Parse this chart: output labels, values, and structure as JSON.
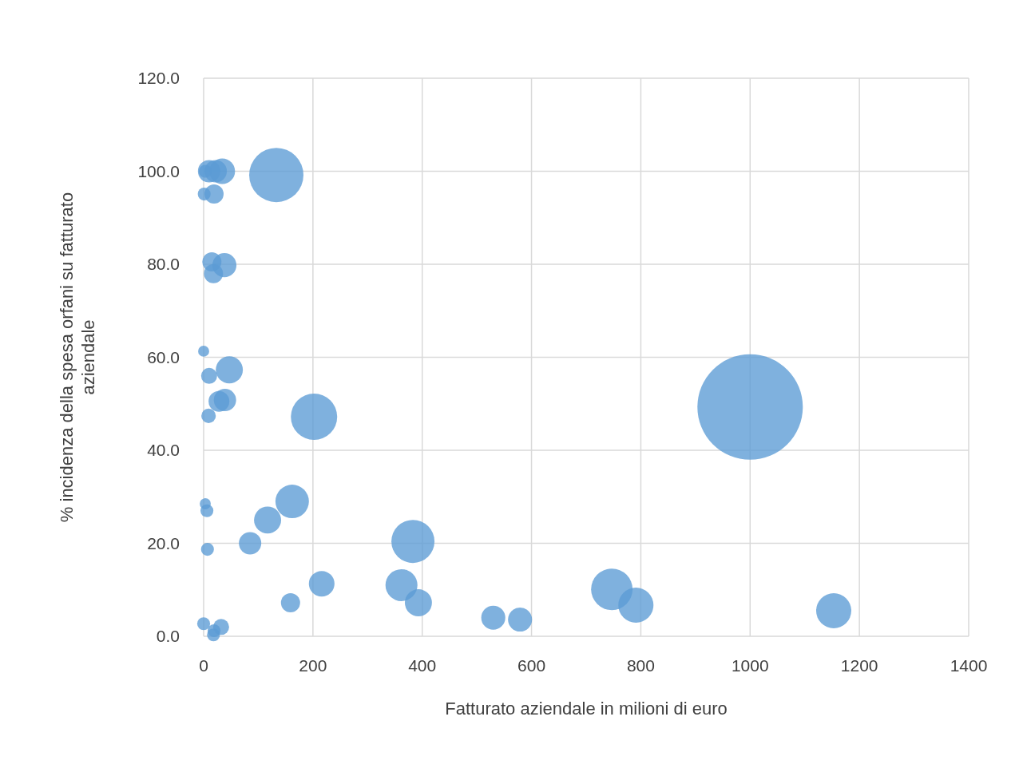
{
  "chart_data": {
    "type": "bubble",
    "xlabel": "Fatturato aziendale in milioni di euro",
    "ylabel": "% incidenza della spesa orfani su fatturato aziendale",
    "xlim": [
      0,
      1400
    ],
    "xticks": [
      0,
      200,
      400,
      600,
      800,
      1000,
      1200,
      1400
    ],
    "ylim": [
      0,
      120
    ],
    "yticks": [
      {
        "value": 0,
        "label": "0.0"
      },
      {
        "value": 20,
        "label": "20.0"
      },
      {
        "value": 40,
        "label": "40.0"
      },
      {
        "value": 60,
        "label": "60.0"
      },
      {
        "value": 80,
        "label": "80.0"
      },
      {
        "value": 100,
        "label": "100.0"
      },
      {
        "value": 120,
        "label": "120.0"
      }
    ],
    "grid": true,
    "series": [
      {
        "color": "#5b9bd5",
        "x": [
          1000,
          133,
          202,
          383,
          747,
          1153,
          791,
          162,
          362,
          117,
          216,
          393,
          530,
          579,
          85,
          159,
          47,
          39,
          28,
          10,
          9,
          0,
          38,
          15,
          18,
          34,
          10,
          22,
          19,
          1,
          3,
          3,
          6,
          7,
          0,
          18,
          32,
          19
        ],
        "values": [
          49.3,
          99.2,
          47.2,
          20.4,
          10.1,
          5.5,
          6.7,
          29,
          11,
          25,
          11.3,
          7.2,
          4,
          3.6,
          20,
          7.2,
          57.3,
          50.8,
          50.5,
          56,
          47.4,
          61.3,
          79.8,
          80.5,
          78,
          100,
          100,
          100,
          95.1,
          95.1,
          100,
          28.5,
          27,
          18.7,
          2.7,
          0.3,
          2,
          1.2
        ],
        "sizes": [
          1,
          0.265,
          0.193,
          0.167,
          0.155,
          0.111,
          0.111,
          0.101,
          0.092,
          0.066,
          0.059,
          0.066,
          0.052,
          0.052,
          0.045,
          0.033,
          0.066,
          0.045,
          0.039,
          0.023,
          0.019,
          0.011,
          0.052,
          0.033,
          0.033,
          0.059,
          0.045,
          0.045,
          0.033,
          0.015,
          0.015,
          0.011,
          0.015,
          0.015,
          0.015,
          0.015,
          0.023,
          0.015
        ]
      }
    ]
  }
}
